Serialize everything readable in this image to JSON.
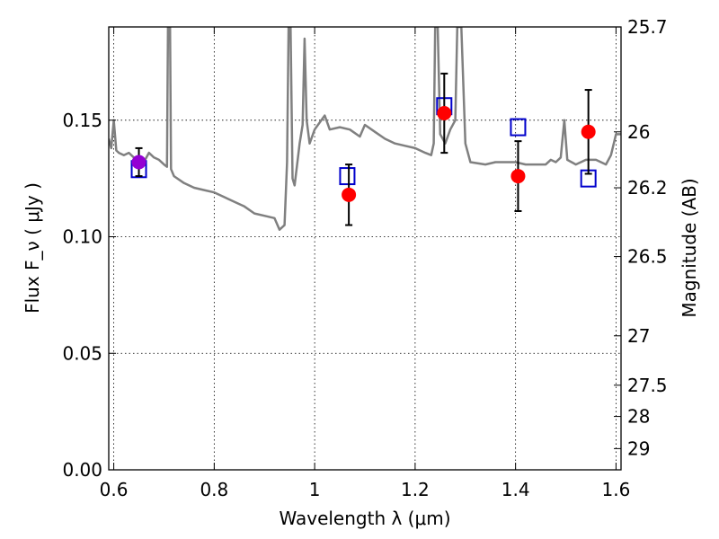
{
  "chart_data": {
    "type": "scatter",
    "xlabel": "Wavelength  λ (μm)",
    "ylabel": "Flux  F_ν  ( μJy )",
    "ylabel_right": "Magnitude (AB)",
    "xlim": [
      0.59,
      1.61
    ],
    "ylim": [
      0.0,
      0.19
    ],
    "grid": true,
    "x_ticks": [
      0.6,
      0.8,
      1.0,
      1.2,
      1.4,
      1.6
    ],
    "x_tick_labels": [
      "0.6",
      "0.8",
      "1",
      "1.2",
      "1.4",
      "1.6"
    ],
    "y_ticks": [
      0.0,
      0.05,
      0.1,
      0.15
    ],
    "y_tick_labels": [
      "0.00",
      "0.05",
      "0.10",
      "0.15"
    ],
    "right_ticks": [
      {
        "label": "25.7",
        "flux": 0.19
      },
      {
        "label": "26",
        "flux": 0.145
      },
      {
        "label": "26.2",
        "flux": 0.121
      },
      {
        "label": "26.5",
        "flux": 0.0915
      },
      {
        "label": "27",
        "flux": 0.0575
      },
      {
        "label": "27.5",
        "flux": 0.0363
      },
      {
        "label": "28",
        "flux": 0.0229
      },
      {
        "label": "29",
        "flux": 0.0091
      }
    ],
    "colors": {
      "model": "#808080",
      "observed": "#ff0000",
      "first_point": "#9400d3",
      "model_band": "#0000cc",
      "errorbar": "#000000"
    },
    "series": [
      {
        "type": "line",
        "points": [
          [
            0.59,
            0.142
          ],
          [
            0.595,
            0.138
          ],
          [
            0.6,
            0.15
          ],
          [
            0.605,
            0.137
          ],
          [
            0.61,
            0.136
          ],
          [
            0.62,
            0.135
          ],
          [
            0.63,
            0.136
          ],
          [
            0.64,
            0.134
          ],
          [
            0.65,
            0.133
          ],
          [
            0.66,
            0.132
          ],
          [
            0.67,
            0.136
          ],
          [
            0.68,
            0.134
          ],
          [
            0.69,
            0.133
          ],
          [
            0.7,
            0.131
          ],
          [
            0.706,
            0.13
          ],
          [
            0.708,
            0.19
          ],
          [
            0.712,
            0.19
          ],
          [
            0.714,
            0.129
          ],
          [
            0.72,
            0.126
          ],
          [
            0.74,
            0.123
          ],
          [
            0.76,
            0.121
          ],
          [
            0.78,
            0.12
          ],
          [
            0.8,
            0.119
          ],
          [
            0.82,
            0.117
          ],
          [
            0.84,
            0.115
          ],
          [
            0.86,
            0.113
          ],
          [
            0.88,
            0.11
          ],
          [
            0.9,
            0.109
          ],
          [
            0.92,
            0.108
          ],
          [
            0.93,
            0.103
          ],
          [
            0.94,
            0.105
          ],
          [
            0.945,
            0.132
          ],
          [
            0.948,
            0.19
          ],
          [
            0.952,
            0.19
          ],
          [
            0.956,
            0.125
          ],
          [
            0.96,
            0.122
          ],
          [
            0.97,
            0.14
          ],
          [
            0.976,
            0.148
          ],
          [
            0.98,
            0.185
          ],
          [
            0.984,
            0.15
          ],
          [
            0.99,
            0.14
          ],
          [
            1.0,
            0.146
          ],
          [
            1.01,
            0.149
          ],
          [
            1.02,
            0.152
          ],
          [
            1.03,
            0.146
          ],
          [
            1.05,
            0.147
          ],
          [
            1.07,
            0.146
          ],
          [
            1.09,
            0.143
          ],
          [
            1.1,
            0.148
          ],
          [
            1.12,
            0.145
          ],
          [
            1.14,
            0.142
          ],
          [
            1.16,
            0.14
          ],
          [
            1.18,
            0.139
          ],
          [
            1.2,
            0.138
          ],
          [
            1.22,
            0.136
          ],
          [
            1.232,
            0.135
          ],
          [
            1.237,
            0.14
          ],
          [
            1.24,
            0.19
          ],
          [
            1.245,
            0.19
          ],
          [
            1.25,
            0.144
          ],
          [
            1.26,
            0.14
          ],
          [
            1.27,
            0.146
          ],
          [
            1.28,
            0.15
          ],
          [
            1.284,
            0.19
          ],
          [
            1.292,
            0.19
          ],
          [
            1.3,
            0.14
          ],
          [
            1.31,
            0.132
          ],
          [
            1.34,
            0.131
          ],
          [
            1.36,
            0.132
          ],
          [
            1.38,
            0.132
          ],
          [
            1.4,
            0.132
          ],
          [
            1.42,
            0.131
          ],
          [
            1.44,
            0.131
          ],
          [
            1.46,
            0.131
          ],
          [
            1.47,
            0.133
          ],
          [
            1.48,
            0.132
          ],
          [
            1.49,
            0.134
          ],
          [
            1.497,
            0.15
          ],
          [
            1.503,
            0.133
          ],
          [
            1.52,
            0.131
          ],
          [
            1.54,
            0.133
          ],
          [
            1.56,
            0.133
          ],
          [
            1.58,
            0.131
          ],
          [
            1.59,
            0.135
          ],
          [
            1.6,
            0.144
          ],
          [
            1.61,
            0.144
          ]
        ]
      },
      {
        "type": "scatter-errorbar",
        "points": [
          {
            "x": 1.068,
            "y": 0.118,
            "err": 0.013
          },
          {
            "x": 1.258,
            "y": 0.153,
            "err": 0.017
          },
          {
            "x": 1.405,
            "y": 0.126,
            "err": 0.015
          },
          {
            "x": 1.545,
            "y": 0.145,
            "err": 0.018
          }
        ],
        "first_point": {
          "x": 0.65,
          "y": 0.132,
          "err": 0.006
        }
      },
      {
        "type": "scatter-square",
        "points": [
          {
            "x": 0.65,
            "y": 0.129
          },
          {
            "x": 1.065,
            "y": 0.126
          },
          {
            "x": 1.258,
            "y": 0.156
          },
          {
            "x": 1.405,
            "y": 0.147
          },
          {
            "x": 1.545,
            "y": 0.125
          }
        ]
      }
    ]
  }
}
